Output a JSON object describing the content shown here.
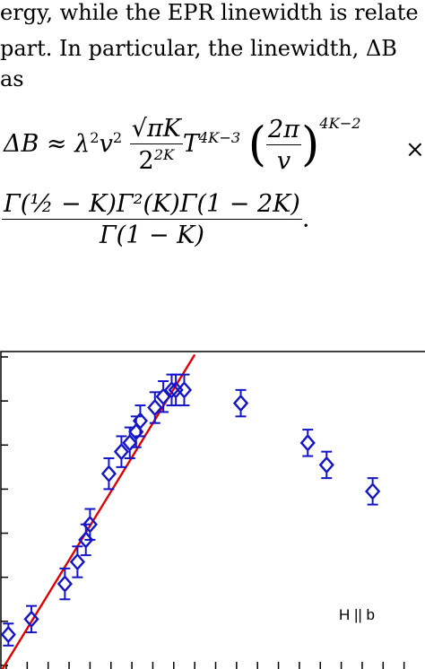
{
  "paragraph": {
    "line1": "ergy, while the EPR linewidth is relate",
    "line2": " part. In particular, the linewidth, ΔB",
    "line3": "as"
  },
  "equation": {
    "lhs": "ΔB ≈ λ",
    "prefactor_num": "√πK",
    "prefactor_den": "2",
    "pi_frac_num": "2π",
    "pi_frac_den": "v",
    "times": "×",
    "gamma_num": "Γ(½ − K)Γ²(K)Γ(1 − 2K)",
    "gamma_den": "Γ(1 − K)",
    "period": "."
  },
  "chart_data": {
    "type": "scatter",
    "title": "",
    "xlabel": "",
    "ylabel": "",
    "annotation": "H || b",
    "colors": {
      "points": "#1414c8",
      "fit_line": "#e00000",
      "frame": "#000000"
    },
    "series": [
      {
        "marker": "open-diamond",
        "points": [
          {
            "x": 0.05,
            "y": 0.7,
            "err": 0.25
          },
          {
            "x": 0.6,
            "y": 1.05,
            "err": 0.3
          },
          {
            "x": 1.4,
            "y": 1.85,
            "err": 0.35
          },
          {
            "x": 1.7,
            "y": 2.35,
            "err": 0.35
          },
          {
            "x": 1.9,
            "y": 2.85,
            "err": 0.35
          },
          {
            "x": 2.0,
            "y": 3.2,
            "err": 0.35
          },
          {
            "x": 2.45,
            "y": 4.35,
            "err": 0.35
          },
          {
            "x": 2.75,
            "y": 4.85,
            "err": 0.35
          },
          {
            "x": 2.95,
            "y": 5.05,
            "err": 0.35
          },
          {
            "x": 3.1,
            "y": 5.3,
            "err": 0.35
          },
          {
            "x": 3.2,
            "y": 5.55,
            "err": 0.35
          },
          {
            "x": 3.55,
            "y": 5.85,
            "err": 0.35
          },
          {
            "x": 3.75,
            "y": 6.1,
            "err": 0.35
          },
          {
            "x": 3.95,
            "y": 6.25,
            "err": 0.35
          },
          {
            "x": 4.05,
            "y": 6.25,
            "err": 0.35
          },
          {
            "x": 4.25,
            "y": 6.25,
            "err": 0.35
          },
          {
            "x": 5.6,
            "y": 5.95,
            "err": 0.3
          },
          {
            "x": 7.2,
            "y": 5.05,
            "err": 0.3
          },
          {
            "x": 7.65,
            "y": 4.55,
            "err": 0.3
          },
          {
            "x": 8.75,
            "y": 3.95,
            "err": 0.3
          }
        ]
      }
    ],
    "fit_line": {
      "x": [
        -0.2,
        4.5
      ],
      "y": [
        -0.25,
        7.05
      ]
    },
    "xlim": [
      0,
      10
    ],
    "ylim": [
      0,
      7
    ],
    "y_ticks": [
      0,
      1,
      2,
      3,
      4,
      5,
      6,
      7
    ],
    "x_ticks": [
      0,
      0.5,
      1,
      1.5,
      2,
      2.5,
      3,
      3.5,
      4,
      4.5,
      5,
      5.5,
      6,
      6.5,
      7,
      7.5,
      8,
      8.5,
      9,
      9.5,
      10
    ]
  }
}
